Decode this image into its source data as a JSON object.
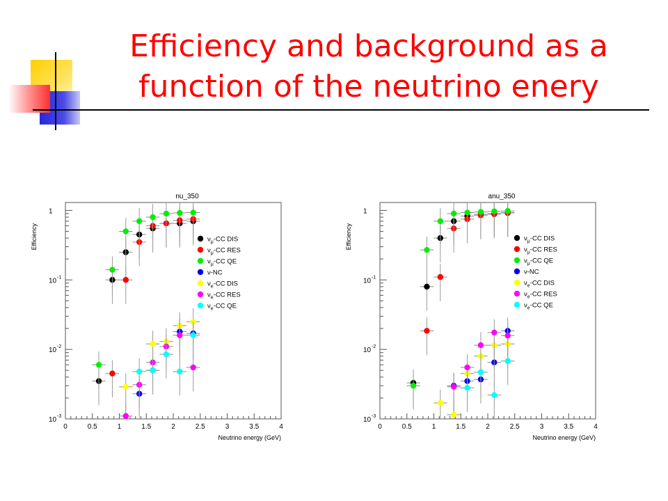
{
  "slide": {
    "title": "Efficiency and background as a\nfunction of the neutrino enery"
  },
  "chart_data": [
    {
      "type": "scatter",
      "title": "nu_350",
      "xlabel": "Neutrino energy (GeV)",
      "ylabel": "Efficiency",
      "xlim": [
        0,
        4
      ],
      "ylim": [
        0.001,
        1.3
      ],
      "yscale": "log",
      "xticks": [
        "0",
        "0.5",
        "1",
        "1.5",
        "2",
        "2.5",
        "3",
        "3.5",
        "4"
      ],
      "yticks": [
        {
          "base": "10",
          "exp": "-3",
          "value": 0.001
        },
        {
          "base": "10",
          "exp": "-2",
          "value": 0.01
        },
        {
          "base": "10",
          "exp": "-1",
          "value": 0.1
        },
        {
          "base": "1",
          "exp": "",
          "value": 1
        }
      ],
      "legend_position": "right",
      "series": [
        {
          "name": "νμ-CC DIS",
          "color": "#000000",
          "points": [
            [
              0.62,
              0.0035
            ],
            [
              0.87,
              0.1
            ],
            [
              1.12,
              0.25
            ],
            [
              1.37,
              0.45
            ],
            [
              1.62,
              0.55
            ],
            [
              1.87,
              0.65
            ],
            [
              2.12,
              0.65
            ],
            [
              2.37,
              0.7
            ]
          ]
        },
        {
          "name": "νμ-CC RES",
          "color": "#ff0000",
          "points": [
            [
              0.87,
              0.0045
            ],
            [
              1.12,
              0.1
            ],
            [
              1.37,
              0.35
            ],
            [
              1.62,
              0.6
            ],
            [
              1.87,
              0.65
            ],
            [
              2.12,
              0.72
            ],
            [
              2.37,
              0.75
            ]
          ]
        },
        {
          "name": "νμ-CC QE",
          "color": "#00ee00",
          "points": [
            [
              0.62,
              0.006
            ],
            [
              0.87,
              0.14
            ],
            [
              1.12,
              0.5
            ],
            [
              1.37,
              0.7
            ],
            [
              1.62,
              0.8
            ],
            [
              1.87,
              0.9
            ],
            [
              2.12,
              0.92
            ],
            [
              2.37,
              0.93
            ]
          ]
        },
        {
          "name": "ν-NC",
          "color": "#0000ee",
          "points": [
            [
              1.37,
              0.0023
            ],
            [
              1.62,
              0.005
            ],
            [
              2.12,
              0.018
            ],
            [
              2.37,
              0.017
            ]
          ]
        },
        {
          "name": "νe-CC DIS",
          "color": "#ffff00",
          "points": [
            [
              1.12,
              0.0029
            ],
            [
              1.62,
              0.012
            ],
            [
              1.87,
              0.013
            ],
            [
              2.12,
              0.022
            ],
            [
              2.37,
              0.025
            ]
          ]
        },
        {
          "name": "νe-CC RES",
          "color": "#ff00ff",
          "points": [
            [
              1.12,
              0.0011
            ],
            [
              1.37,
              0.0031
            ],
            [
              1.62,
              0.0065
            ],
            [
              1.87,
              0.011
            ],
            [
              2.12,
              0.016
            ],
            [
              2.37,
              0.0055
            ]
          ]
        },
        {
          "name": "νe-CC QE",
          "color": "#00ffff",
          "points": [
            [
              1.37,
              0.0048
            ],
            [
              1.62,
              0.005
            ],
            [
              1.87,
              0.0085
            ],
            [
              2.12,
              0.0048
            ],
            [
              2.37,
              0.016
            ]
          ]
        }
      ]
    },
    {
      "type": "scatter",
      "title": "anu_350",
      "xlabel": "Neutrino energy (GeV)",
      "ylabel": "Efficiency",
      "xlim": [
        0,
        4
      ],
      "ylim": [
        0.001,
        1.3
      ],
      "yscale": "log",
      "xticks": [
        "0",
        "0.5",
        "1",
        "1.5",
        "2",
        "2.5",
        "3",
        "3.5",
        "4"
      ],
      "yticks": [
        {
          "base": "10",
          "exp": "-3",
          "value": 0.001
        },
        {
          "base": "10",
          "exp": "-2",
          "value": 0.01
        },
        {
          "base": "10",
          "exp": "-1",
          "value": 0.1
        },
        {
          "base": "1",
          "exp": "",
          "value": 1
        }
      ],
      "legend_position": "right",
      "series": [
        {
          "name": "νμ-CC DIS",
          "color": "#000000",
          "points": [
            [
              0.62,
              0.0033
            ],
            [
              0.87,
              0.08
            ],
            [
              1.12,
              0.4
            ],
            [
              1.37,
              0.7
            ],
            [
              1.62,
              0.83
            ],
            [
              1.87,
              0.88
            ],
            [
              2.12,
              0.9
            ],
            [
              2.37,
              0.92
            ]
          ]
        },
        {
          "name": "νμ-CC RES",
          "color": "#ff0000",
          "points": [
            [
              0.87,
              0.0185
            ],
            [
              1.12,
              0.11
            ],
            [
              1.37,
              0.55
            ],
            [
              1.62,
              0.75
            ],
            [
              1.87,
              0.85
            ],
            [
              2.12,
              0.88
            ],
            [
              2.37,
              0.93
            ]
          ]
        },
        {
          "name": "νμ-CC QE",
          "color": "#00ee00",
          "points": [
            [
              0.62,
              0.003
            ],
            [
              0.87,
              0.27
            ],
            [
              1.12,
              0.7
            ],
            [
              1.37,
              0.9
            ],
            [
              1.62,
              0.93
            ],
            [
              1.87,
              0.95
            ],
            [
              2.12,
              0.97
            ],
            [
              2.37,
              0.98
            ]
          ]
        },
        {
          "name": "ν-NC",
          "color": "#0000ee",
          "points": [
            [
              1.37,
              0.003
            ],
            [
              1.62,
              0.0035
            ],
            [
              1.87,
              0.0037
            ],
            [
              2.12,
              0.0065
            ],
            [
              2.37,
              0.0185
            ]
          ]
        },
        {
          "name": "νe-CC DIS",
          "color": "#ffff00",
          "points": [
            [
              1.12,
              0.0017
            ],
            [
              1.37,
              0.00115
            ],
            [
              1.62,
              0.0045
            ],
            [
              1.87,
              0.008
            ],
            [
              2.12,
              0.0115
            ],
            [
              2.37,
              0.012
            ]
          ]
        },
        {
          "name": "νe-CC RES",
          "color": "#ff00ff",
          "points": [
            [
              1.37,
              0.0029
            ],
            [
              1.62,
              0.0055
            ],
            [
              1.87,
              0.0115
            ],
            [
              2.12,
              0.0175
            ],
            [
              2.37,
              0.0158
            ]
          ]
        },
        {
          "name": "νe-CC QE",
          "color": "#00ffff",
          "points": [
            [
              1.62,
              0.0028
            ],
            [
              1.87,
              0.0047
            ],
            [
              2.12,
              0.0022
            ],
            [
              2.37,
              0.0068
            ]
          ]
        }
      ]
    }
  ]
}
